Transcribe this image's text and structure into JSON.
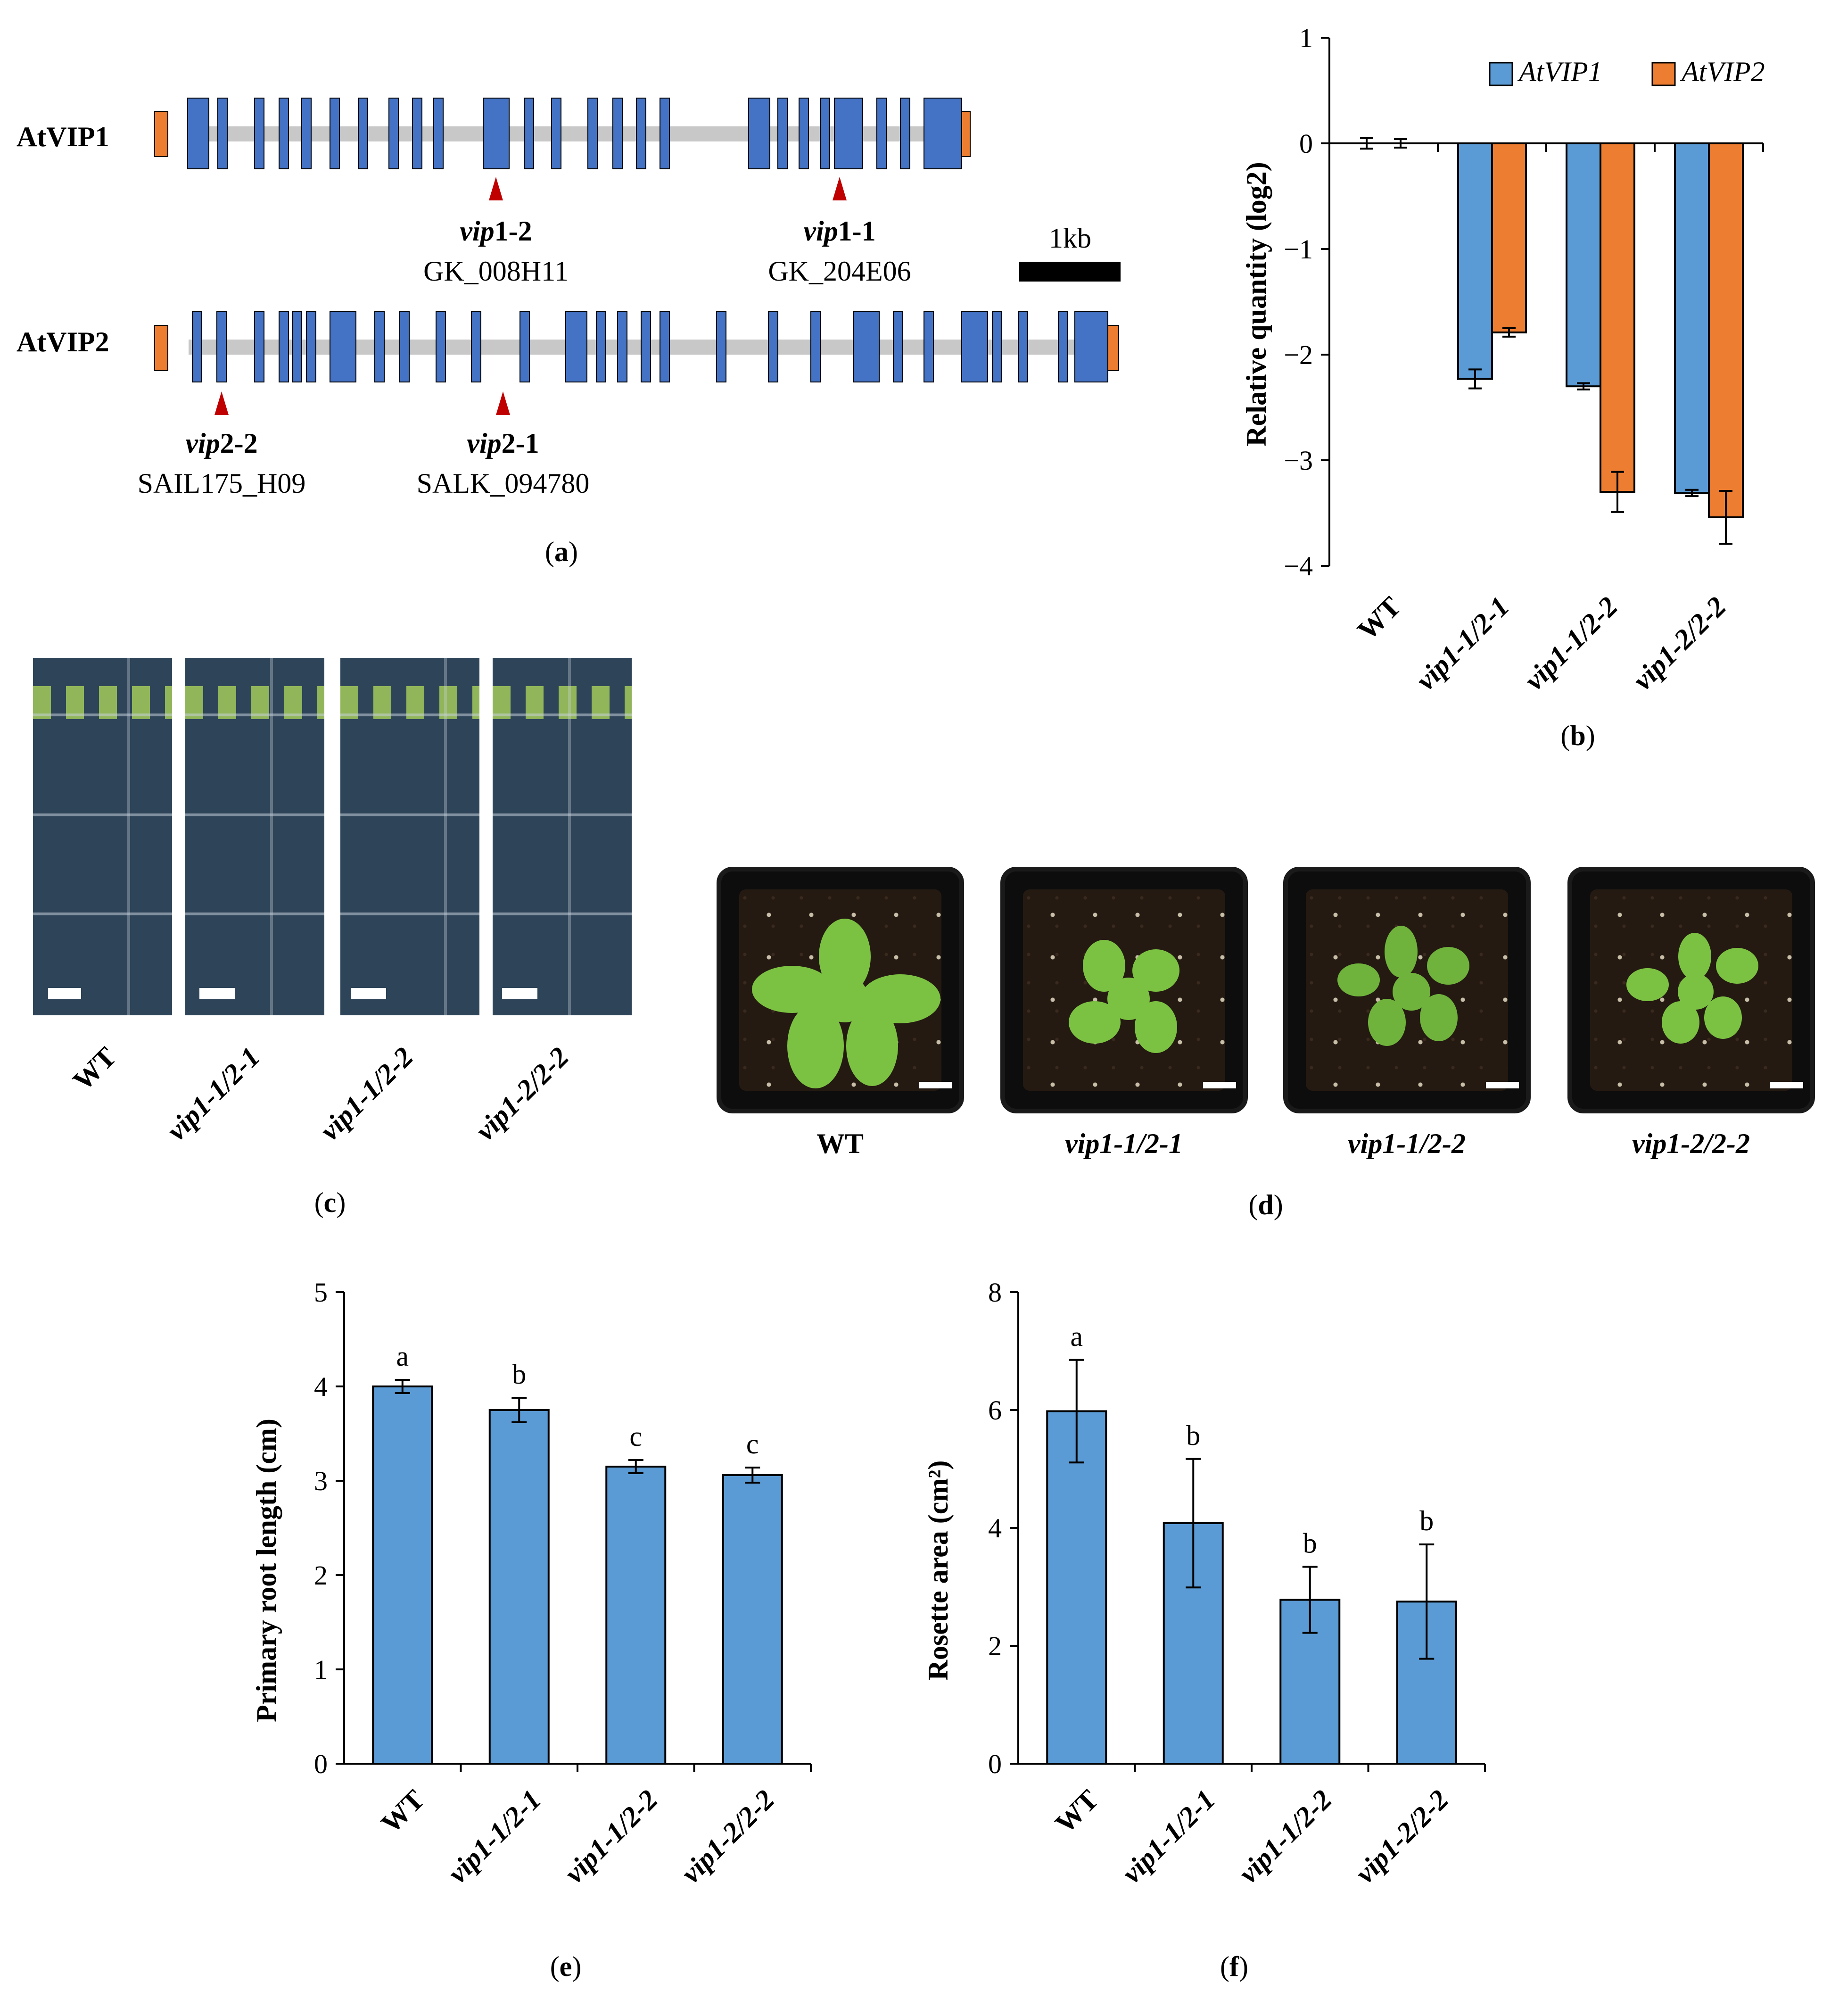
{
  "panel_labels": {
    "a": "(a)",
    "b": "(b)",
    "c": "(c)",
    "d": "(d)",
    "e": "(e)",
    "f": "(f)"
  },
  "genes": {
    "vip1_label": "AtVIP1",
    "vip2_label": "AtVIP2",
    "scale_label": "1kb",
    "vip1_alleles": [
      {
        "name_prefix": "vip",
        "name_suffix": "1-2",
        "line": "GK_008H11"
      },
      {
        "name_prefix": "vip",
        "name_suffix": "1-1",
        "line": "GK_204E06"
      }
    ],
    "vip2_alleles": [
      {
        "name_prefix": "vip",
        "name_suffix": "2-2",
        "line": "SAIL175_H09"
      },
      {
        "name_prefix": "vip",
        "name_suffix": "2-1",
        "line": "SALK_094780"
      }
    ],
    "colors": {
      "exon": "#4472c4",
      "utr": "#ed7d31",
      "intron": "#c8c8c8",
      "insertion": "#c00000"
    }
  },
  "genotypes": [
    "WT",
    "vip1-1/2-1",
    "vip1-1/2-2",
    "vip1-2/2-2"
  ],
  "chart_data": [
    {
      "panel": "b",
      "type": "bar",
      "categories": [
        "WT",
        "vip1-1/2-1",
        "vip1-1/2-2",
        "vip1-2/2-2"
      ],
      "series": [
        {
          "name": "AtVIP1",
          "color": "#5b9bd5",
          "values": [
            0.0,
            -2.23,
            -2.3,
            -3.31
          ],
          "errors": [
            0.05,
            0.09,
            0.03,
            0.03
          ]
        },
        {
          "name": "AtVIP2",
          "color": "#ed7d31",
          "values": [
            0.0,
            -1.79,
            -3.3,
            -3.54
          ],
          "errors": [
            0.04,
            0.04,
            0.19,
            0.25
          ]
        }
      ],
      "ylabel": "Relative quantity (log2)",
      "ylim": [
        -4,
        1
      ],
      "yticks": [
        "1",
        "0",
        "−1",
        "−2",
        "−3",
        "−4"
      ],
      "legend": "top-right"
    },
    {
      "panel": "e",
      "type": "bar",
      "categories": [
        "WT",
        "vip1-1/2-1",
        "vip1-1/2-2",
        "vip1-2/2-2"
      ],
      "values": [
        4.0,
        3.75,
        3.15,
        3.06
      ],
      "errors": [
        0.07,
        0.13,
        0.07,
        0.08
      ],
      "letters": [
        "a",
        "b",
        "c",
        "c"
      ],
      "color": "#5b9bd5",
      "ylabel": "Primary root length (cm)",
      "ylim": [
        0,
        5
      ],
      "yticks": [
        "0",
        "1",
        "2",
        "3",
        "4",
        "5"
      ]
    },
    {
      "panel": "f",
      "type": "bar",
      "categories": [
        "WT",
        "vip1-1/2-1",
        "vip1-1/2-2",
        "vip1-2/2-2"
      ],
      "values": [
        5.98,
        4.08,
        2.78,
        2.75
      ],
      "errors": [
        0.87,
        1.09,
        0.56,
        0.97
      ],
      "letters": [
        "a",
        "b",
        "b",
        "b"
      ],
      "color": "#5b9bd5",
      "ylabel": "Rosette area (cm²)",
      "ylim": [
        0,
        8
      ],
      "yticks": [
        "0",
        "2",
        "4",
        "6",
        "8"
      ]
    }
  ]
}
